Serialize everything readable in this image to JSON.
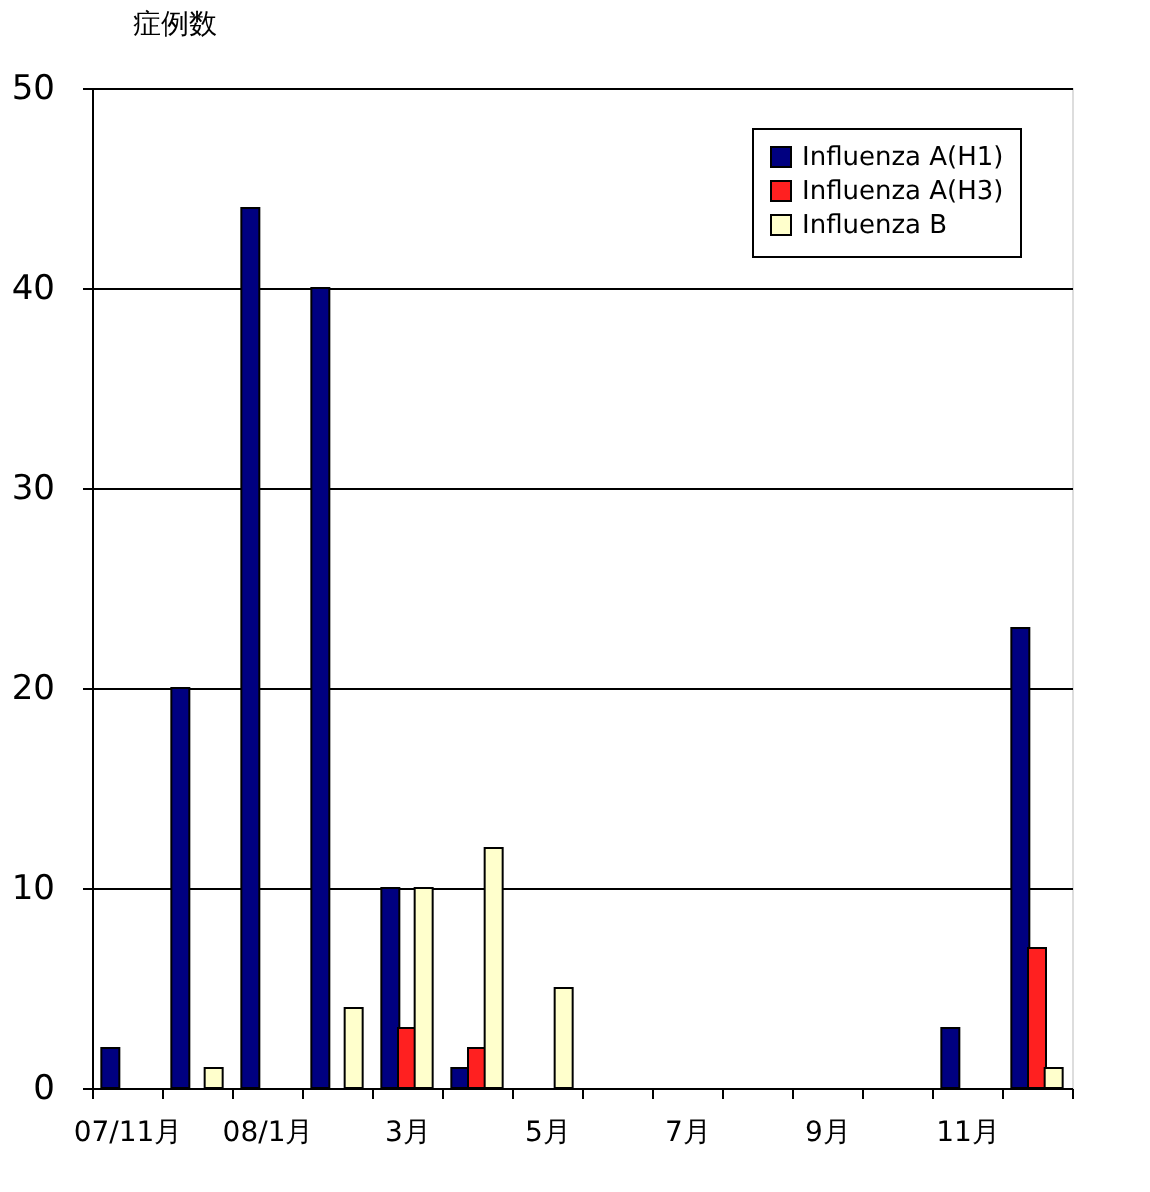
{
  "chart_data": {
    "type": "bar",
    "ylabel": "症例数",
    "categories": [
      "07/11月",
      null,
      "08/1月",
      null,
      "3月",
      null,
      "5月",
      null,
      "7月",
      null,
      "9月",
      null,
      "11月",
      null
    ],
    "series": [
      {
        "name": "Influenza A(H1)",
        "color": "#000080",
        "values": [
          2,
          20,
          44,
          40,
          10,
          1,
          0,
          0,
          0,
          0,
          0,
          0,
          3,
          23
        ]
      },
      {
        "name": "Influenza A(H3)",
        "color": "#ff2020",
        "values": [
          0,
          0,
          0,
          0,
          3,
          2,
          0,
          0,
          0,
          0,
          0,
          0,
          0,
          7
        ]
      },
      {
        "name": "Influenza B",
        "color": "#ffffcc",
        "values": [
          0,
          1,
          0,
          4,
          10,
          12,
          5,
          0,
          0,
          0,
          0,
          0,
          0,
          1
        ]
      }
    ],
    "ylim": [
      0,
      50
    ],
    "yticks": [
      0,
      10,
      20,
      30,
      40,
      50
    ],
    "grid": "y",
    "legend": "top right"
  }
}
